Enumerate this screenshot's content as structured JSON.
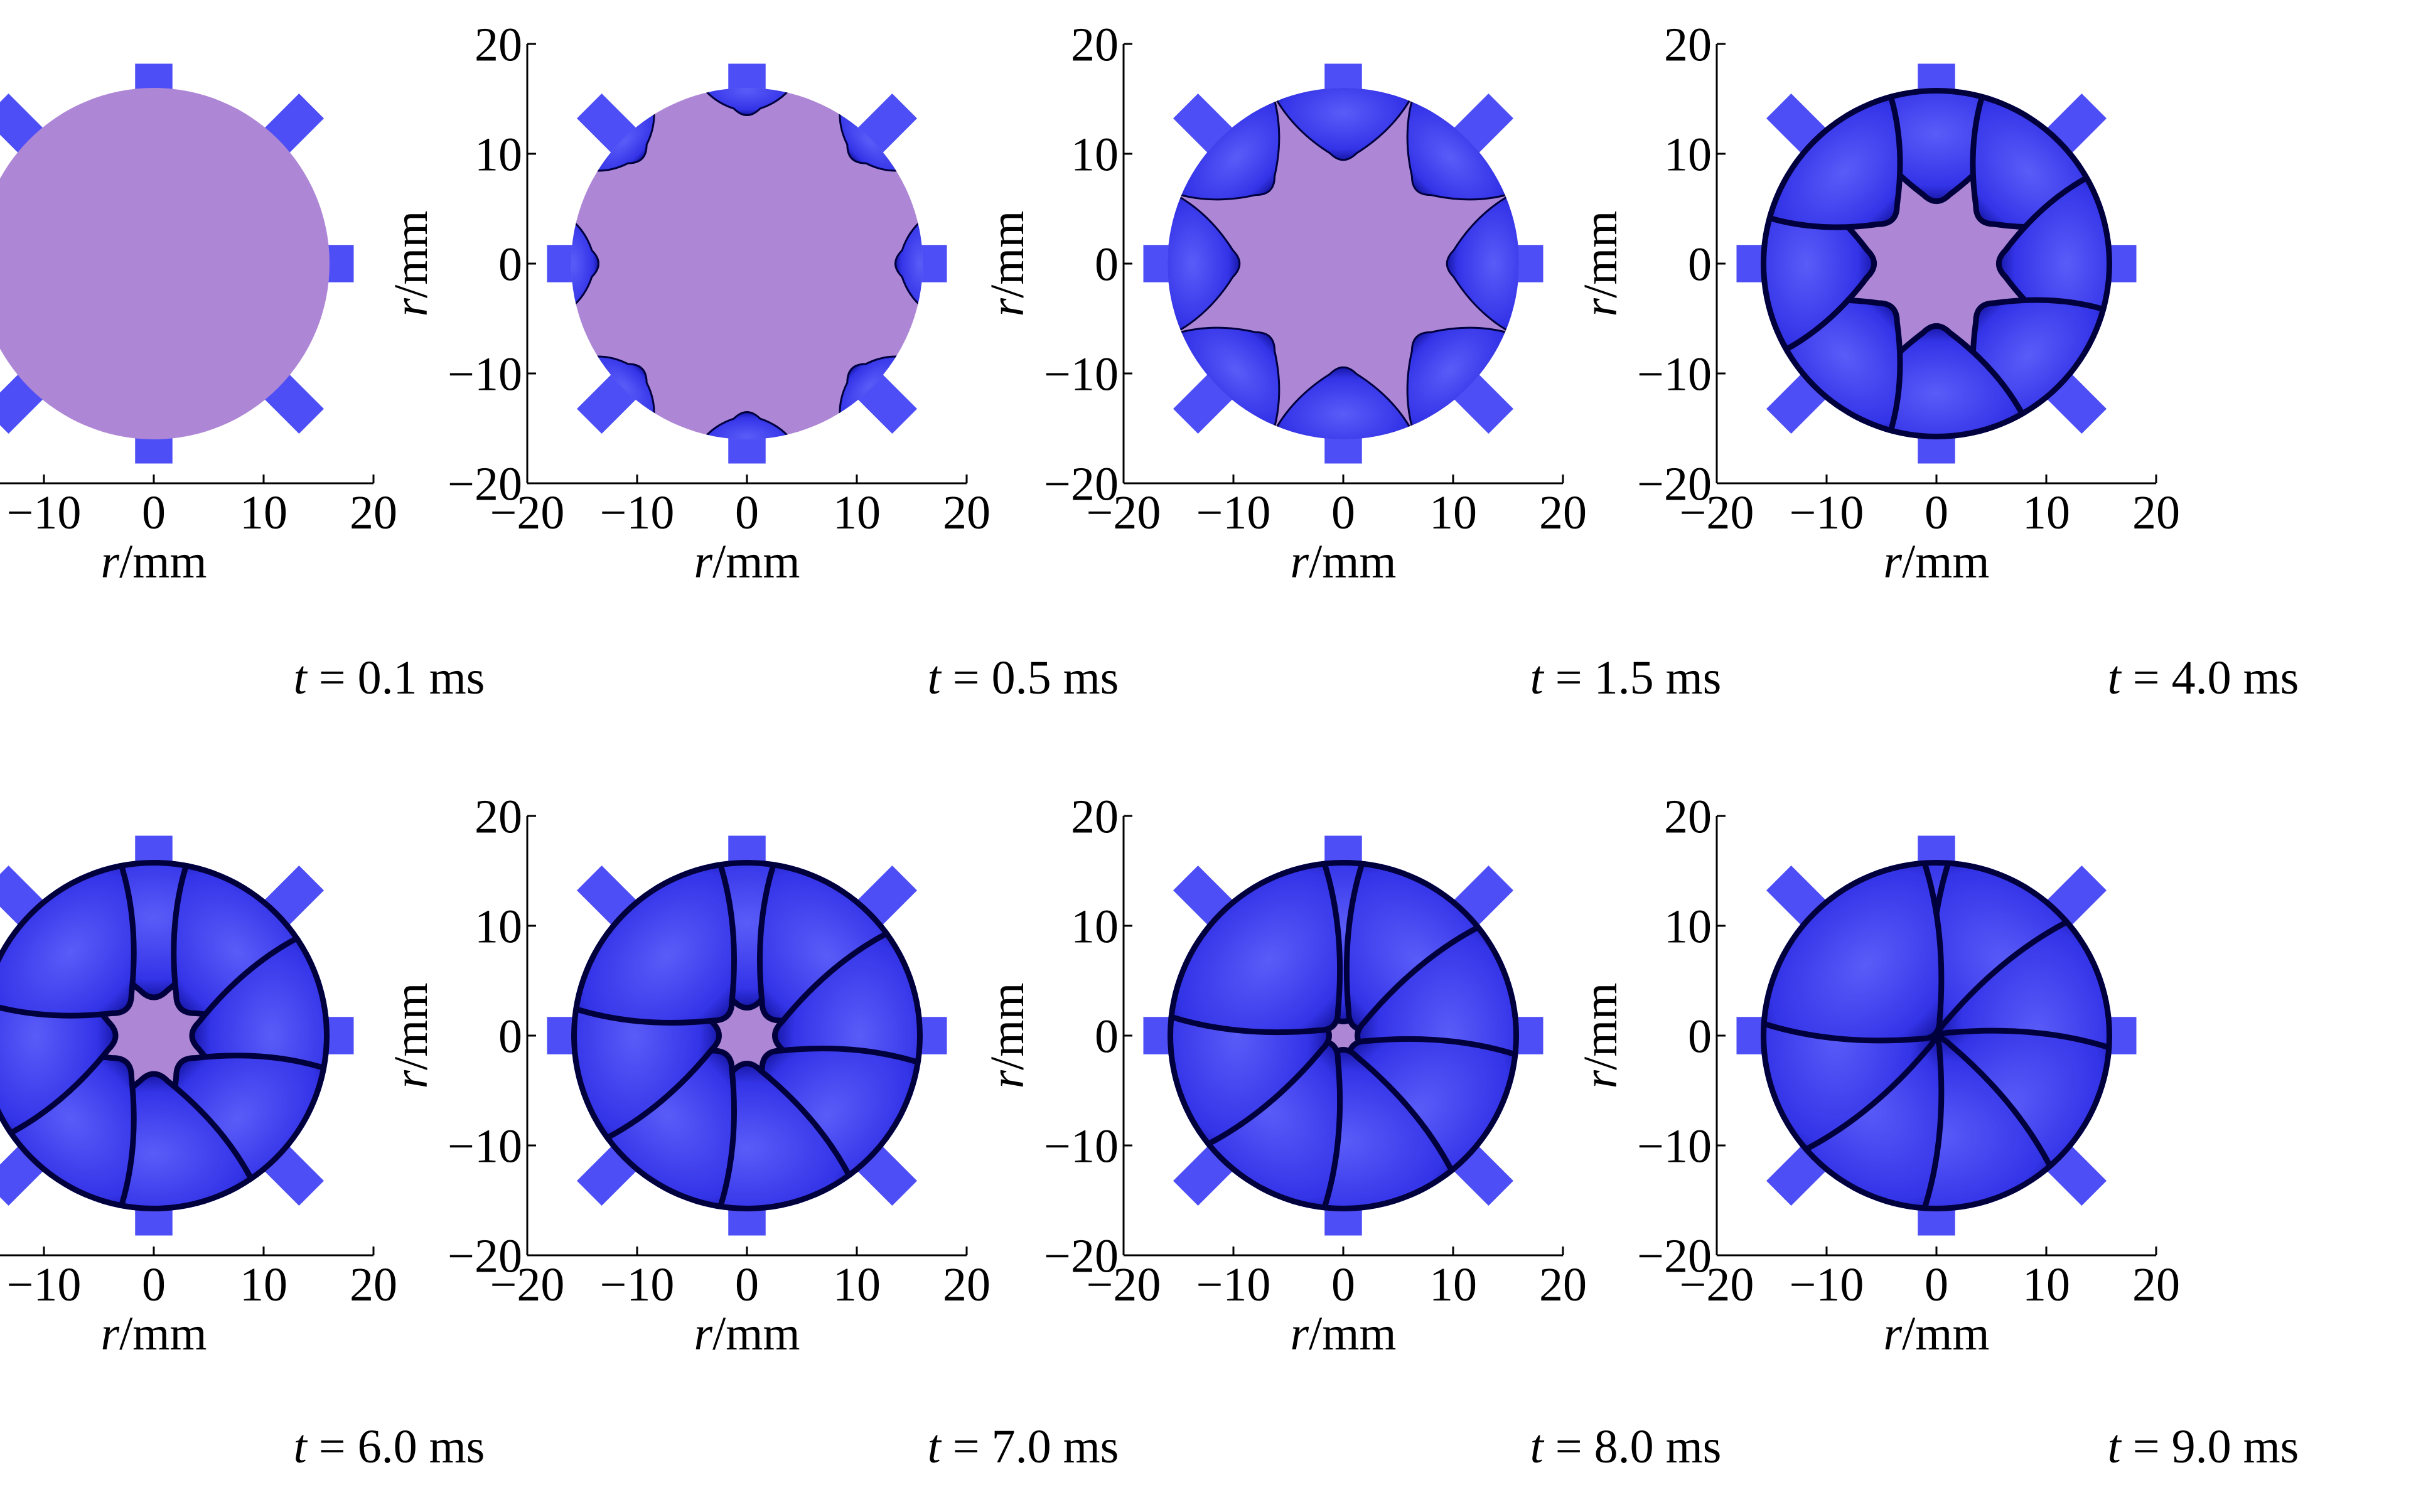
{
  "axes": {
    "x_label_var": "r",
    "x_label_unit": "/mm",
    "y_label_var": "r",
    "y_label_unit": "/mm",
    "x_ticks": [
      "−20",
      "−10",
      "0",
      "10",
      "20"
    ],
    "y_ticks": [
      "20",
      "10",
      "0",
      "−10",
      "−20"
    ],
    "x_range": [
      -20,
      20
    ],
    "y_range": [
      -20,
      20
    ]
  },
  "colors": {
    "gas": "#ae86d6",
    "fluid_light": "#5a5cf8",
    "fluid_dark": "#0a0a8a",
    "fluid_edge": "#00003c",
    "inlet": "#4e4ef6"
  },
  "panels": [
    {
      "t_var": "t",
      "caption": " = 0.1 ms",
      "progress": 0.0
    },
    {
      "t_var": "t",
      "caption": " = 0.5 ms",
      "progress": 0.12
    },
    {
      "t_var": "t",
      "caption": " = 1.5 ms",
      "progress": 0.38
    },
    {
      "t_var": "t",
      "caption": " = 4.0 ms",
      "progress": 0.62
    },
    {
      "t_var": "t",
      "caption": " = 6.0 ms",
      "progress": 0.76
    },
    {
      "t_var": "t",
      "caption": " = 7.0 ms",
      "progress": 0.82
    },
    {
      "t_var": "t",
      "caption": " = 8.0 ms",
      "progress": 0.9
    },
    {
      "t_var": "t",
      "caption": " = 9.0 ms",
      "progress": 0.97
    }
  ]
}
